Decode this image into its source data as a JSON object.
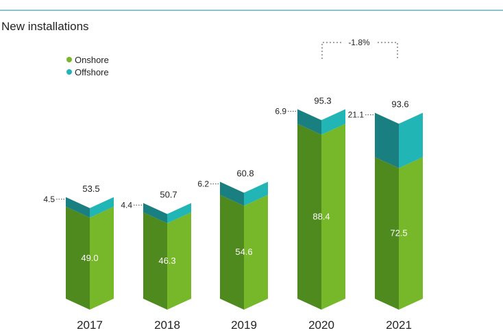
{
  "chart_data": {
    "type": "bar",
    "stacked": true,
    "title": "New installations",
    "categories": [
      "2017",
      "2018",
      "2019",
      "2020",
      "2021"
    ],
    "series": [
      {
        "name": "Onshore",
        "values": [
          49.0,
          46.3,
          54.6,
          88.4,
          72.5
        ],
        "color": "#76b82a",
        "dark_color": "#4f8a1e"
      },
      {
        "name": "Offshore",
        "values": [
          4.5,
          4.4,
          6.2,
          6.9,
          21.1
        ],
        "color": "#21b5b5",
        "dark_color": "#1a7f80"
      }
    ],
    "totals": [
      53.5,
      50.7,
      60.8,
      95.3,
      93.6
    ],
    "value_labels": {
      "onshore": [
        "49.0",
        "46.3",
        "54.6",
        "88.4",
        "72.5"
      ],
      "offshore": [
        "4.5",
        "4.4",
        "6.2",
        "6.9",
        "21.1"
      ],
      "totals": [
        "53.5",
        "50.7",
        "60.8",
        "95.3",
        "93.6"
      ]
    },
    "legend": [
      "Onshore",
      "Offshore"
    ],
    "legend_position": "top-left",
    "annotation": {
      "text": "-1.8%",
      "from": "2020",
      "to": "2021"
    },
    "ylim": [
      0,
      100
    ],
    "grid": false
  },
  "colors": {
    "header_rule": "#1f7fa0",
    "text": "#222222"
  }
}
